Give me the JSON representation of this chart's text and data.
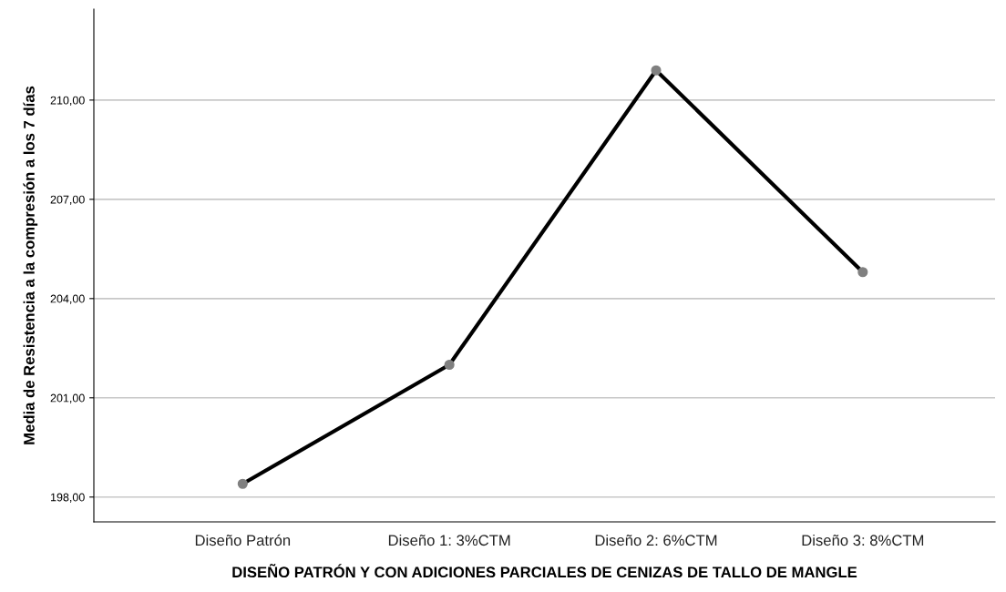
{
  "chart_data": {
    "type": "line",
    "xlabel": "DISEÑO PATRÓN Y CON ADICIONES PARCIALES DE CENIZAS DE TALLO DE MANGLE",
    "ylabel": "Media de Resistencia a la compresión a los 7 días",
    "categories": [
      "Diseño Patrón",
      "Diseño 1: 3%CTM",
      "Diseño 2: 6%CTM",
      "Diseño 3: 8%CTM"
    ],
    "series": [
      {
        "color": "#000000",
        "values": [
          198.4,
          202.0,
          210.9,
          204.8
        ]
      }
    ],
    "ylim": [
      197.25,
      212.75
    ],
    "yticks": [
      {
        "value": 198,
        "label": "198,00"
      },
      {
        "value": 201,
        "label": "201,00"
      },
      {
        "value": 204,
        "label": "204,00"
      },
      {
        "value": 207,
        "label": "207,00"
      },
      {
        "value": 210,
        "label": "210,00"
      }
    ],
    "grid": "y",
    "marker": "circle",
    "line_style": "solid",
    "legend": false
  }
}
